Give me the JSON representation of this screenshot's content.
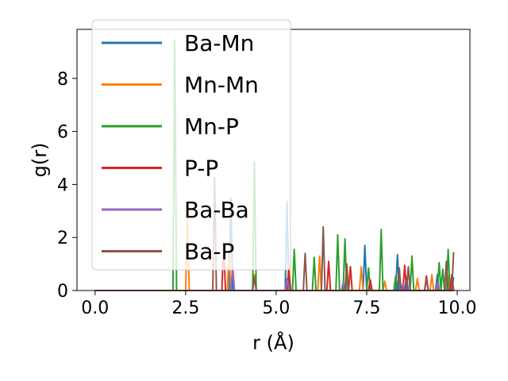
{
  "chart_data": {
    "type": "line",
    "xlabel": "r (Å)",
    "ylabel": "g(r)",
    "xlim": [
      -0.5,
      10.35
    ],
    "ylim": [
      0,
      9.85
    ],
    "xticks": [
      {
        "value": 0.0,
        "label": "0.0"
      },
      {
        "value": 2.5,
        "label": "2.5"
      },
      {
        "value": 5.0,
        "label": "5.0"
      },
      {
        "value": 7.5,
        "label": "7.5"
      },
      {
        "value": 10.0,
        "label": "10.0"
      }
    ],
    "yticks": [
      {
        "value": 0,
        "label": "0"
      },
      {
        "value": 2,
        "label": "2"
      },
      {
        "value": 4,
        "label": "4"
      },
      {
        "value": 6,
        "label": "6"
      },
      {
        "value": 8,
        "label": "8"
      }
    ],
    "legend_position": "top-left",
    "grid": false,
    "series": [
      {
        "name": "Ba-Mn",
        "color": "#1f77b4",
        "peaks": [
          [
            3.75,
            3.5
          ],
          [
            5.3,
            3.35
          ],
          [
            7.45,
            1.7
          ],
          [
            8.35,
            1.35
          ],
          [
            8.6,
            0.5
          ],
          [
            9.45,
            0.6
          ],
          [
            9.9,
            0.5
          ]
        ]
      },
      {
        "name": "Mn-Mn",
        "color": "#ff7f0e",
        "peaks": [
          [
            2.55,
            2.75
          ],
          [
            3.7,
            1.45
          ],
          [
            4.4,
            0.6
          ],
          [
            5.35,
            0.95
          ],
          [
            6.2,
            1.3
          ],
          [
            7.35,
            0.9
          ],
          [
            8.0,
            0.35
          ],
          [
            8.9,
            0.45
          ],
          [
            9.3,
            0.6
          ],
          [
            9.75,
            0.55
          ]
        ]
      },
      {
        "name": "Mn-P",
        "color": "#2ca02c",
        "peaks": [
          [
            2.2,
            9.45
          ],
          [
            4.4,
            4.85
          ],
          [
            5.5,
            1.55
          ],
          [
            6.05,
            1.25
          ],
          [
            6.7,
            2.1
          ],
          [
            6.9,
            1.95
          ],
          [
            7.55,
            0.85
          ],
          [
            7.9,
            2.3
          ],
          [
            8.3,
            0.55
          ],
          [
            8.75,
            1.3
          ],
          [
            9.5,
            1.05
          ],
          [
            9.6,
            0.8
          ],
          [
            9.75,
            1.55
          ]
        ]
      },
      {
        "name": "P-P",
        "color": "#d62728",
        "peaks": [
          [
            3.55,
            1.8
          ],
          [
            5.35,
            0.75
          ],
          [
            6.45,
            1.1
          ],
          [
            7.05,
            0.9
          ],
          [
            7.6,
            0.4
          ],
          [
            8.55,
            0.95
          ],
          [
            9.15,
            0.55
          ],
          [
            9.85,
            0.6
          ]
        ]
      },
      {
        "name": "Ba-Ba",
        "color": "#9467bd",
        "peaks": [
          [
            3.8,
            0.9
          ],
          [
            5.3,
            0.45
          ],
          [
            6.85,
            0.3
          ],
          [
            8.5,
            0.25
          ],
          [
            9.45,
            0.3
          ]
        ]
      },
      {
        "name": "Ba-P",
        "color": "#8c564b",
        "peaks": [
          [
            3.3,
            4.25
          ],
          [
            4.4,
            0.5
          ],
          [
            5.8,
            1.4
          ],
          [
            6.3,
            2.4
          ],
          [
            6.95,
            1.0
          ],
          [
            8.4,
            0.85
          ],
          [
            8.65,
            0.9
          ],
          [
            9.15,
            0.45
          ],
          [
            9.7,
            1.1
          ],
          [
            9.9,
            1.45
          ]
        ]
      }
    ]
  }
}
